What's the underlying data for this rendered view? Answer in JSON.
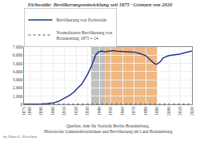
{
  "chart_data": {
    "type": "line",
    "title": "Eichwalde: Bevölkerungsentwicklung seit 1875 · Grenzen von 2020",
    "x": [
      1875,
      1880,
      1885,
      1890,
      1895,
      1900,
      1905,
      1910,
      1915,
      1919,
      1920,
      1925,
      1930,
      1933,
      1935,
      1937,
      1939,
      1940,
      1942,
      1944,
      1945,
      1946,
      1950,
      1952,
      1955,
      1960,
      1964,
      1970,
      1975,
      1980,
      1985,
      1987,
      1989,
      1990,
      1991,
      1993,
      1995,
      1997,
      2000,
      2005,
      2010,
      2015,
      2018,
      2020
    ],
    "series": [
      {
        "name": "Bevölkerung von Eichwalde",
        "color": "#1a3a8c",
        "line_style": "solid",
        "values": [
          14,
          14,
          22,
          45,
          90,
          160,
          380,
          750,
          1150,
          1600,
          1800,
          2500,
          3700,
          4600,
          5300,
          6050,
          6350,
          6450,
          6500,
          6450,
          6400,
          6450,
          6500,
          6550,
          6500,
          6480,
          6420,
          6380,
          6200,
          5950,
          5300,
          5050,
          4900,
          4920,
          5050,
          5250,
          5650,
          5800,
          5950,
          6050,
          6150,
          6350,
          6480,
          6520
        ]
      },
      {
        "name": "Normalisierte Bevölkerung von\nBrandenburg 1875 = 14",
        "color": "#555555",
        "line_style": "dotted",
        "values": [
          14,
          14,
          14,
          14,
          14,
          14,
          14,
          14,
          14,
          14,
          14,
          14,
          14,
          14,
          14,
          14,
          14,
          14,
          14,
          14,
          14,
          14,
          14,
          14,
          14,
          14,
          14,
          14,
          14,
          14,
          14,
          14,
          14,
          14,
          14,
          14,
          14,
          14,
          14,
          14,
          14,
          14,
          14,
          14
        ]
      }
    ],
    "xlim": [
      1875,
      2020
    ],
    "xticks": [
      1875,
      1880,
      1890,
      1900,
      1910,
      1920,
      1930,
      1940,
      1950,
      1960,
      1970,
      1980,
      1990,
      2000,
      2010,
      2020
    ],
    "ylim": [
      0,
      7000
    ],
    "yticks": [
      0,
      {
        "value": 1000,
        "label": "1.000"
      },
      {
        "value": 2000,
        "label": "2.000"
      },
      {
        "value": 3000,
        "label": "3.000"
      },
      {
        "value": 4000,
        "label": "4.000"
      },
      {
        "value": 5000,
        "label": "5.000"
      },
      {
        "value": 6000,
        "label": "6.000"
      },
      {
        "value": 7000,
        "label": "7.000"
      }
    ],
    "shaded_periods": [
      {
        "start": 1933,
        "end": 1945,
        "color": "#c0c0c0"
      },
      {
        "start": 1945,
        "end": 1990,
        "color": "#f0b882"
      }
    ],
    "grid": true,
    "legend": "upper left",
    "annotations": [
      "Quellen: Amt für Statistik Berlin-Brandenburg,",
      "Historische Gemeindestatistiken und Bevölkerung im Land Brandenburg",
      "by Hans-G. Eßerlach"
    ]
  }
}
